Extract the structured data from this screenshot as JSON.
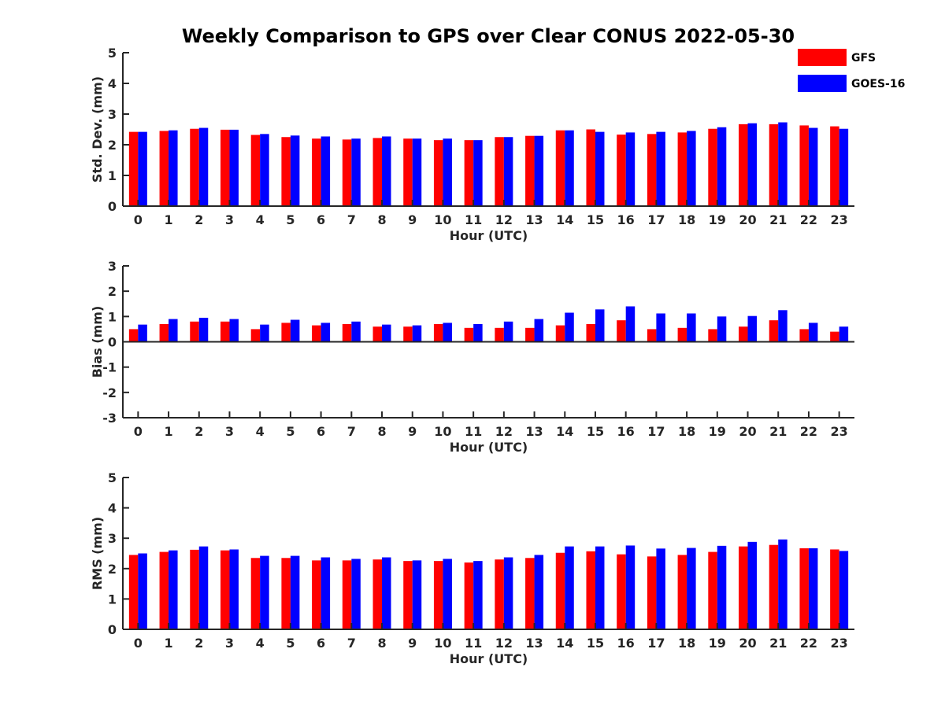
{
  "chart_data": {
    "type": "bar",
    "title": "Weekly Comparison to GPS over Clear CONUS 2022-05-30",
    "legend": {
      "placement": "top-right",
      "entries": [
        {
          "name": "GFS",
          "color": "#ff0000"
        },
        {
          "name": "GOES-16",
          "color": "#0000ff"
        }
      ]
    },
    "categories": [
      "0",
      "1",
      "2",
      "3",
      "4",
      "5",
      "6",
      "7",
      "8",
      "9",
      "10",
      "11",
      "12",
      "13",
      "14",
      "15",
      "16",
      "17",
      "18",
      "19",
      "20",
      "21",
      "22",
      "23"
    ],
    "panels": [
      {
        "id": "std",
        "xlabel": "Hour (UTC)",
        "ylabel": "Std. Dev. (mm)",
        "ylim": [
          0,
          5
        ],
        "yticks": [
          0,
          1,
          2,
          3,
          4,
          5
        ],
        "series": [
          {
            "name": "GFS",
            "values": [
              2.42,
              2.45,
              2.52,
              2.49,
              2.32,
              2.25,
              2.2,
              2.17,
              2.22,
              2.2,
              2.15,
              2.15,
              2.25,
              2.29,
              2.47,
              2.5,
              2.33,
              2.35,
              2.4,
              2.52,
              2.67,
              2.67,
              2.63,
              2.6
            ]
          },
          {
            "name": "GOES-16",
            "values": [
              2.42,
              2.47,
              2.55,
              2.49,
              2.35,
              2.3,
              2.27,
              2.2,
              2.27,
              2.2,
              2.2,
              2.15,
              2.25,
              2.29,
              2.47,
              2.42,
              2.4,
              2.42,
              2.45,
              2.57,
              2.7,
              2.73,
              2.55,
              2.52
            ]
          }
        ]
      },
      {
        "id": "bias",
        "xlabel": "Hour (UTC)",
        "ylabel": "Bias (mm)",
        "ylim": [
          -3,
          3
        ],
        "yticks": [
          -3,
          -2,
          -1,
          0,
          1,
          2,
          3
        ],
        "series": [
          {
            "name": "GFS",
            "values": [
              0.5,
              0.7,
              0.8,
              0.8,
              0.5,
              0.75,
              0.65,
              0.7,
              0.6,
              0.6,
              0.7,
              0.55,
              0.55,
              0.55,
              0.65,
              0.7,
              0.85,
              0.5,
              0.55,
              0.5,
              0.6,
              0.85,
              0.5,
              0.4
            ]
          },
          {
            "name": "GOES-16",
            "values": [
              0.68,
              0.9,
              0.95,
              0.9,
              0.68,
              0.87,
              0.75,
              0.8,
              0.68,
              0.65,
              0.75,
              0.7,
              0.8,
              0.9,
              1.15,
              1.28,
              1.4,
              1.12,
              1.12,
              1.0,
              1.02,
              1.25,
              0.75,
              0.6
            ]
          }
        ]
      },
      {
        "id": "rms",
        "xlabel": "Hour (UTC)",
        "ylabel": "RMS (mm)",
        "ylim": [
          0,
          5
        ],
        "yticks": [
          0,
          1,
          2,
          3,
          4,
          5
        ],
        "series": [
          {
            "name": "GFS",
            "values": [
              2.45,
              2.55,
              2.62,
              2.6,
              2.35,
              2.35,
              2.27,
              2.27,
              2.3,
              2.25,
              2.25,
              2.2,
              2.3,
              2.35,
              2.52,
              2.57,
              2.47,
              2.4,
              2.45,
              2.55,
              2.73,
              2.78,
              2.67,
              2.63
            ]
          },
          {
            "name": "GOES-16",
            "values": [
              2.5,
              2.6,
              2.73,
              2.63,
              2.42,
              2.42,
              2.37,
              2.32,
              2.37,
              2.27,
              2.32,
              2.25,
              2.37,
              2.45,
              2.73,
              2.73,
              2.76,
              2.66,
              2.68,
              2.75,
              2.88,
              2.96,
              2.67,
              2.58
            ]
          }
        ]
      }
    ]
  }
}
